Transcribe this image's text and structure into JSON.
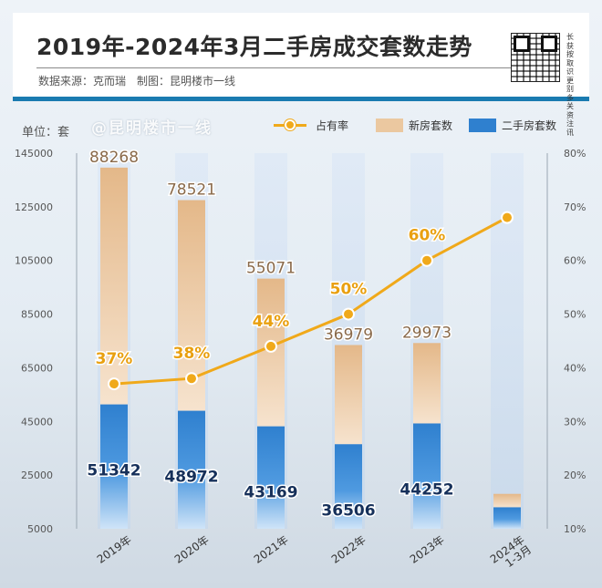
{
  "header": {
    "title": "2019年-2024年3月二手房成交套数走势",
    "subtitle": "数据来源：克而瑞　制图：昆明楼市一线",
    "qr_text": "长获按取识更别多关资注讯"
  },
  "watermark": "@昆明楼市一线",
  "colors": {
    "line": "#f0a91a",
    "new_house": "#ebc8a0",
    "second_hand": "#2f80cf"
  },
  "chart_data": {
    "type": "bar",
    "unit_label": "单位：套",
    "categories": [
      "2019年",
      "2020年",
      "2021年",
      "2022年",
      "2023年",
      "2024年 1-3月"
    ],
    "series": [
      {
        "name": "二手房套数",
        "type": "bar",
        "axis": "left",
        "values": [
          51342,
          48972,
          43169,
          36506,
          44252,
          13000
        ],
        "labels": [
          "51342",
          "48972",
          "43169",
          "36506",
          "44252",
          ""
        ]
      },
      {
        "name": "新房套数",
        "type": "bar",
        "axis": "left",
        "values": [
          88268,
          78521,
          55071,
          36979,
          29973,
          5000
        ],
        "labels": [
          "88268",
          "78521",
          "55071",
          "36979",
          "29973",
          ""
        ]
      },
      {
        "name": "占有率",
        "type": "line",
        "axis": "right",
        "values": [
          37,
          38,
          44,
          50,
          60,
          68
        ],
        "labels": [
          "37%",
          "38%",
          "44%",
          "50%",
          "60%",
          ""
        ]
      }
    ],
    "y_left": {
      "min": 5000,
      "max": 145000,
      "ticks": [
        "5000",
        "25000",
        "45000",
        "65000",
        "85000",
        "105000",
        "125000",
        "145000"
      ]
    },
    "y_right": {
      "min": 10,
      "max": 80,
      "ticks": [
        "10%",
        "20%",
        "30%",
        "40%",
        "50%",
        "60%",
        "70%",
        "80%"
      ]
    },
    "legend_position": "top-right",
    "grid": false
  }
}
